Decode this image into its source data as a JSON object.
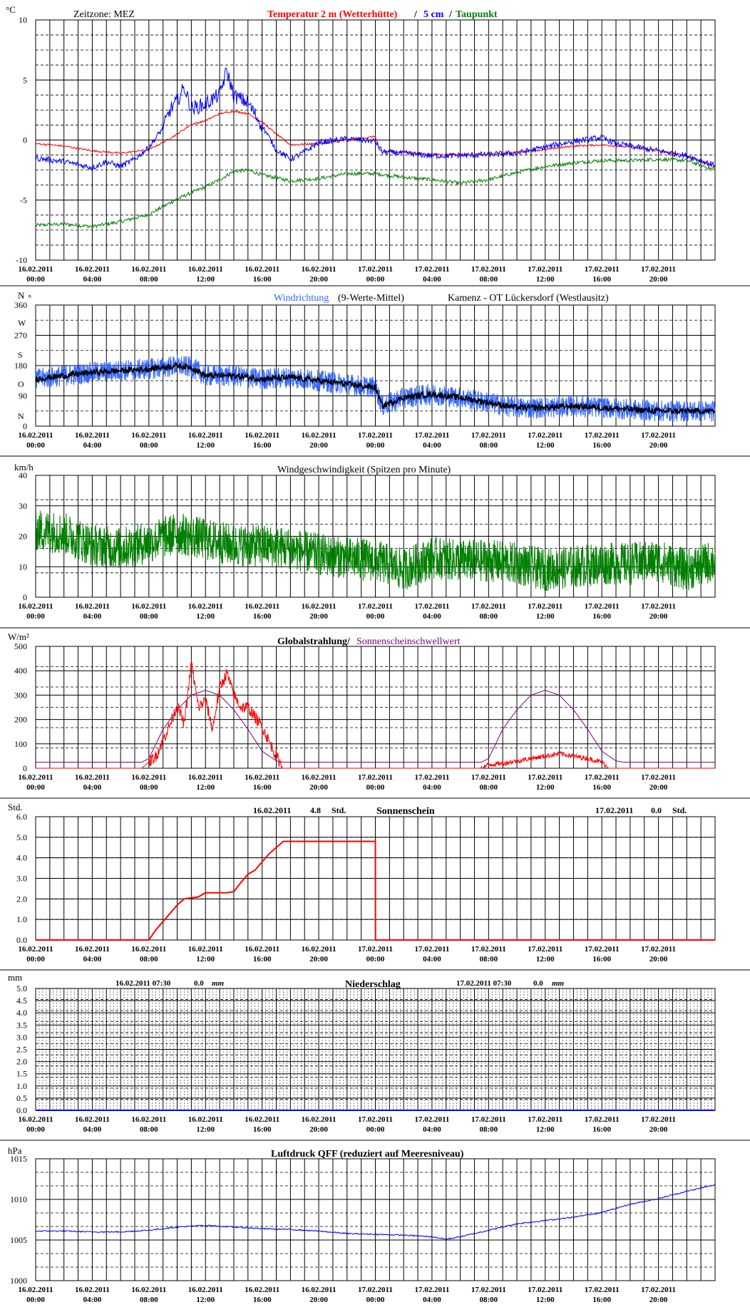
{
  "time_axis": {
    "tick_labels": [
      [
        "16.02.2011",
        "00:00"
      ],
      [
        "16.02.2011",
        "04:00"
      ],
      [
        "16.02.2011",
        "08:00"
      ],
      [
        "16.02.2011",
        "12:00"
      ],
      [
        "16.02.2011",
        "16:00"
      ],
      [
        "16.02.2011",
        "20:00"
      ],
      [
        "17.02.2011",
        "00:00"
      ],
      [
        "17.02.2011",
        "04:00"
      ],
      [
        "17.02.2011",
        "08:00"
      ],
      [
        "17.02.2011",
        "12:00"
      ],
      [
        "17.02.2011",
        "16:00"
      ],
      [
        "17.02.2011",
        "20:00"
      ]
    ],
    "range_hours": [
      0,
      48
    ]
  },
  "panels": {
    "temperature": {
      "unit": "°C",
      "timezone_label": "Zeitzone: MEZ",
      "title_red": "Temperatur 2 m (Wetterhütte)",
      "title_sep": "/",
      "title_blue": "5 cm",
      "title_sep2": "/",
      "title_green": "Taupunkt",
      "y_ticks": [
        "10",
        "5",
        "0",
        "-5",
        "-10"
      ]
    },
    "wind_direction": {
      "unit": "N",
      "unit_deg": "°",
      "title_blue": "Windrichtung",
      "title_rest": "(9-Werte-Mittel)",
      "station": "Kamenz - OT Lückersdorf (Westlausitz)",
      "y_ticks": [
        "360",
        "270",
        "180",
        "90",
        "0"
      ],
      "compass": [
        "W",
        "S",
        "O",
        "N"
      ]
    },
    "wind_speed": {
      "unit": "km/h",
      "title": "Windgeschwindigkeit (Spitzen pro Minute)",
      "y_ticks": [
        "40",
        "30",
        "20",
        "10",
        "0"
      ]
    },
    "radiation": {
      "unit": "W/m²",
      "title_black": "Globalstrahlung/",
      "title_purple": "Sonnenscheinschwellwert",
      "y_ticks": [
        "500",
        "400",
        "300",
        "200",
        "100",
        "0"
      ]
    },
    "sunshine": {
      "unit": "Std.",
      "title": "Sonnenschein",
      "day1_date": "16.02.2011",
      "day1_value": "4.8",
      "day1_unit": "Std.",
      "day2_date": "17.02.2011",
      "day2_value": "0.0",
      "day2_unit": "Std.",
      "y_ticks": [
        "6.0",
        "5.0",
        "4.0",
        "3.0",
        "2.0",
        "1.0",
        "0.0"
      ]
    },
    "precipitation": {
      "unit": "mm",
      "title": "Niederschlag",
      "day1_date": "16.02.2011 07:30",
      "day1_value": "0.0",
      "day1_unit": "mm",
      "day2_date": "17.02.2011 07:30",
      "day2_value": "0.0",
      "day2_unit": "mm",
      "y_ticks": [
        "5.0",
        "4.5",
        "4.0",
        "3.5",
        "3.0",
        "2.5",
        "2.0",
        "1.5",
        "1.0",
        "0.5",
        "0.0"
      ]
    },
    "pressure": {
      "unit": "hPa",
      "title": "Luftdruck QFF (reduziert auf Meeresniveau)",
      "y_ticks": [
        "1015",
        "1010",
        "1005",
        "1000"
      ]
    }
  },
  "colors": {
    "temperature_2m": "#ff0000",
    "temperature_5cm": "#0000ff",
    "dewpoint": "#008000",
    "wind_direction_raw": "#3366ff",
    "wind_direction_mean": "#000000",
    "wind_speed": "#008000",
    "global_radiation": "#ff0000",
    "sunshine_threshold": "#800080",
    "sunshine": "#ff0000",
    "precipitation": "#0000ff",
    "pressure": "#0000ff"
  },
  "chart_data": [
    {
      "type": "line",
      "title": "Temperatur 2 m (Wetterhütte) / 5 cm / Taupunkt",
      "ylabel": "°C",
      "ylim": [
        -10,
        10
      ],
      "x_unit": "hours since 16.02.2011 00:00",
      "series": [
        {
          "name": "Temperatur 2 m (Wetterhütte)",
          "x": [
            0,
            2,
            4,
            6,
            8,
            9,
            10,
            11,
            12,
            13,
            14,
            15,
            16,
            17,
            18,
            20,
            22,
            24,
            24.3,
            26,
            28,
            30,
            32,
            34,
            36,
            38,
            40,
            42,
            44,
            46,
            48
          ],
          "y": [
            -0.3,
            -0.5,
            -0.9,
            -1.1,
            -0.8,
            -0.2,
            0.5,
            1.3,
            1.6,
            2.2,
            2.4,
            2.2,
            1.5,
            0.5,
            -0.4,
            -0.3,
            0.0,
            0.3,
            -0.9,
            -1.0,
            -1.2,
            -1.2,
            -1.2,
            -1.0,
            -0.8,
            -0.5,
            -0.4,
            -0.6,
            -0.9,
            -1.3,
            -2.3
          ]
        },
        {
          "name": "5 cm",
          "x": [
            0,
            2,
            4,
            5,
            6,
            7,
            8,
            9,
            9.5,
            10,
            10.5,
            11,
            12,
            13,
            13.5,
            14,
            15,
            16,
            17,
            18,
            19,
            20,
            22,
            24,
            24.5,
            26,
            28,
            30,
            32,
            34,
            36,
            38,
            40,
            41,
            42,
            44,
            46,
            48
          ],
          "y": [
            -1.5,
            -1.8,
            -2.3,
            -1.8,
            -2.2,
            -1.6,
            -0.6,
            1.0,
            2.5,
            3.3,
            4.4,
            2.6,
            3.0,
            3.8,
            5.8,
            3.7,
            3.1,
            1.2,
            -0.8,
            -1.6,
            -1.0,
            -0.2,
            0.1,
            -0.1,
            -1.0,
            -1.1,
            -1.3,
            -1.3,
            -1.2,
            -1.1,
            -0.6,
            -0.1,
            0.2,
            -0.3,
            -0.5,
            -0.9,
            -1.3,
            -2.1
          ]
        },
        {
          "name": "Taupunkt",
          "x": [
            0,
            2,
            4,
            6,
            8,
            10,
            12,
            13,
            14,
            15,
            16,
            18,
            20,
            22,
            24,
            26,
            28,
            30,
            32,
            34,
            36,
            38,
            40,
            42,
            44,
            46,
            48
          ],
          "y": [
            -7.1,
            -7.0,
            -7.2,
            -6.8,
            -6.2,
            -4.9,
            -3.9,
            -3.3,
            -2.6,
            -2.5,
            -2.9,
            -3.4,
            -3.2,
            -2.8,
            -2.8,
            -3.1,
            -3.3,
            -3.6,
            -3.3,
            -2.7,
            -2.2,
            -1.9,
            -1.7,
            -1.7,
            -1.6,
            -1.7,
            -2.5
          ]
        }
      ]
    },
    {
      "type": "line",
      "title": "Windrichtung (9-Werte-Mittel)",
      "ylabel": "N °",
      "ylim": [
        0,
        360
      ],
      "x_unit": "hours since 16.02.2011 00:00",
      "series": [
        {
          "name": "9-Werte-Mittel",
          "x": [
            0,
            2,
            4,
            6,
            8,
            10,
            11,
            12,
            14,
            16,
            18,
            20,
            22,
            24,
            24.5,
            26,
            28,
            30,
            32,
            34,
            36,
            38,
            40,
            42,
            44,
            46,
            48
          ],
          "y": [
            140,
            150,
            160,
            165,
            170,
            180,
            175,
            150,
            150,
            140,
            145,
            135,
            125,
            115,
            60,
            85,
            95,
            85,
            70,
            55,
            55,
            60,
            55,
            50,
            45,
            45,
            45
          ]
        }
      ]
    },
    {
      "type": "line",
      "title": "Windgeschwindigkeit (Spitzen pro Minute)",
      "ylabel": "km/h",
      "ylim": [
        0,
        40
      ],
      "x_unit": "hours since 16.02.2011 00:00",
      "series": [
        {
          "name": "Windgeschwindigkeit",
          "x": [
            0,
            2,
            4,
            6,
            8,
            10,
            12,
            14,
            16,
            18,
            20,
            22,
            24,
            26,
            28,
            30,
            32,
            34,
            36,
            38,
            40,
            42,
            44,
            46,
            48
          ],
          "y": [
            22,
            21,
            17,
            16,
            18,
            21,
            19,
            17,
            17,
            16,
            14,
            13,
            12,
            9,
            13,
            12,
            12,
            11,
            9,
            10,
            11,
            11,
            12,
            9,
            12
          ]
        }
      ]
    },
    {
      "type": "line",
      "title": "Globalstrahlung/ Sonnenscheinschwellwert",
      "ylabel": "W/m²",
      "ylim": [
        0,
        500
      ],
      "x_unit": "hours since 16.02.2011 00:00",
      "series": [
        {
          "name": "Globalstrahlung",
          "x": [
            0,
            7.5,
            8.5,
            9.5,
            10,
            10.5,
            11,
            11.5,
            12,
            12.5,
            13,
            13.5,
            14,
            14.5,
            15,
            16,
            17,
            17.5,
            31.5,
            32,
            33,
            34,
            35,
            36,
            37,
            38,
            39,
            40,
            40.5,
            48
          ],
          "y": [
            0,
            0,
            50,
            180,
            260,
            180,
            430,
            250,
            280,
            160,
            330,
            390,
            300,
            250,
            250,
            170,
            50,
            0,
            0,
            15,
            20,
            30,
            40,
            50,
            60,
            50,
            40,
            25,
            0,
            0
          ]
        },
        {
          "name": "Sonnenscheinschwellwert",
          "x": [
            0,
            7.5,
            8,
            9,
            10,
            11,
            12,
            13,
            14,
            15,
            16,
            17,
            17.5,
            31.5,
            32,
            33,
            34,
            35,
            36,
            37,
            38,
            39,
            40,
            41,
            41.5,
            48
          ],
          "y": [
            25,
            25,
            40,
            160,
            240,
            300,
            320,
            300,
            240,
            160,
            70,
            30,
            25,
            25,
            40,
            160,
            240,
            300,
            320,
            300,
            240,
            160,
            70,
            30,
            25,
            25
          ]
        }
      ]
    },
    {
      "type": "line",
      "title": "Sonnenschein",
      "ylabel": "Std.",
      "ylim": [
        0,
        6
      ],
      "x_unit": "hours since 16.02.2011 00:00",
      "series": [
        {
          "name": "Sonnenschein",
          "x": [
            0,
            8,
            8.5,
            9.5,
            10,
            10.5,
            11,
            11.5,
            12,
            13,
            13.5,
            14,
            14.5,
            15,
            15.5,
            16,
            16.5,
            17,
            17.5,
            18,
            20,
            22,
            24,
            24.01,
            48
          ],
          "y": [
            0,
            0,
            0.5,
            1.3,
            1.7,
            2.0,
            2.05,
            2.1,
            2.3,
            2.3,
            2.3,
            2.35,
            2.8,
            3.2,
            3.4,
            3.8,
            4.2,
            4.5,
            4.8,
            4.8,
            4.8,
            4.8,
            4.8,
            0,
            0
          ]
        }
      ]
    },
    {
      "type": "bar",
      "title": "Niederschlag",
      "ylabel": "mm",
      "ylim": [
        0,
        5
      ],
      "x_unit": "hours since 16.02.2011 00:00",
      "series": [
        {
          "name": "Niederschlag",
          "x": [
            0,
            48
          ],
          "y": [
            0,
            0
          ]
        }
      ]
    },
    {
      "type": "line",
      "title": "Luftdruck QFF (reduziert auf Meeresniveau)",
      "ylabel": "hPa",
      "ylim": [
        1000,
        1015
      ],
      "x_unit": "hours since 16.02.2011 00:00",
      "series": [
        {
          "name": "Luftdruck QFF",
          "x": [
            0,
            2,
            4,
            6,
            8,
            10,
            12,
            14,
            16,
            18,
            20,
            22,
            24,
            26,
            28,
            29,
            30,
            32,
            34,
            36,
            38,
            40,
            42,
            44,
            46,
            48
          ],
          "y": [
            1006.1,
            1006.1,
            1006.0,
            1006.0,
            1006.2,
            1006.6,
            1006.8,
            1006.6,
            1006.4,
            1006.3,
            1006.1,
            1005.8,
            1005.7,
            1005.6,
            1005.4,
            1005.1,
            1005.4,
            1006.2,
            1007.0,
            1007.4,
            1007.8,
            1008.4,
            1009.4,
            1010.1,
            1011.0,
            1011.8
          ]
        }
      ]
    }
  ]
}
